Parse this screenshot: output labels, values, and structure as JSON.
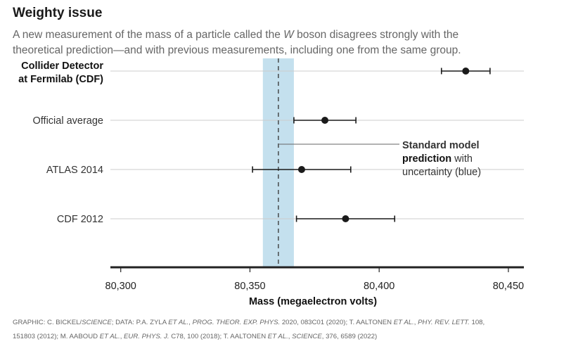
{
  "header": {
    "title": "Weighty issue",
    "subtitle_part1": "A new measurement of the mass of a particle called the ",
    "subtitle_italic": "W",
    "subtitle_part2": " boson disagrees strongly with the theoretical prediction—and with previous measurements, including one from the same group."
  },
  "chart_data": {
    "type": "scatter",
    "subtype": "dot-with-error-bars",
    "xlabel": "Mass (megaelectron volts)",
    "xlim": [
      80296,
      80456
    ],
    "xticks": [
      80300,
      80350,
      80400,
      80450
    ],
    "xtick_labels": [
      "80,300",
      "80,350",
      "80,400",
      "80,450"
    ],
    "categories": [
      {
        "label_line1": "Collider Detector",
        "label_line2": "at Fermilab (CDF)",
        "bold": true,
        "value": 80433.5,
        "low": 80424.1,
        "high": 80442.9
      },
      {
        "label_line1": "Official average",
        "label_line2": "",
        "bold": false,
        "value": 80379,
        "low": 80367,
        "high": 80391
      },
      {
        "label_line1": "ATLAS 2014",
        "label_line2": "",
        "bold": false,
        "value": 80370,
        "low": 80351,
        "high": 80389
      },
      {
        "label_line1": "CDF 2012",
        "label_line2": "",
        "bold": false,
        "value": 80387,
        "low": 80368,
        "high": 80406
      }
    ],
    "prediction": {
      "value": 80361,
      "low": 80355,
      "high": 80367
    },
    "annotation": {
      "bold_line1": "Standard model",
      "bold_line2": "prediction",
      "normal_line2": " with",
      "line3": "uncertainty (blue)"
    },
    "colors": {
      "band": "#c4e0ee",
      "points": "#1a1a1a",
      "grid": "#cccccc",
      "axis": "#222222"
    },
    "grid": true
  },
  "footer": {
    "credit_line1_a": "GRAPHIC: C. BICKEL/",
    "credit_line1_b": "SCIENCE",
    "credit_line1_c": "; DATA: P.A. ZYLA ",
    "credit_line1_d": "ET AL.",
    "credit_line1_e": ", ",
    "credit_line1_f": "PROG. THEOR. EXP. PHYS.",
    "credit_line1_g": " 2020, 083C01 (2020); T. AALTONEN ",
    "credit_line1_h": "ET AL.",
    "credit_line1_i": ", ",
    "credit_line1_j": "PHY. REV. LETT.",
    "credit_line1_k": " 108,",
    "credit_line2_a": "151803 (2012); M. AABOUD ",
    "credit_line2_b": "ET AL.",
    "credit_line2_c": ", ",
    "credit_line2_d": "EUR. PHYS. J.",
    "credit_line2_e": " C78, 100 (2018); T. AALTONEN ",
    "credit_line2_f": "ET AL.",
    "credit_line2_g": ", ",
    "credit_line2_h": "SCIENCE",
    "credit_line2_i": ", 376, 6589 (2022)"
  }
}
